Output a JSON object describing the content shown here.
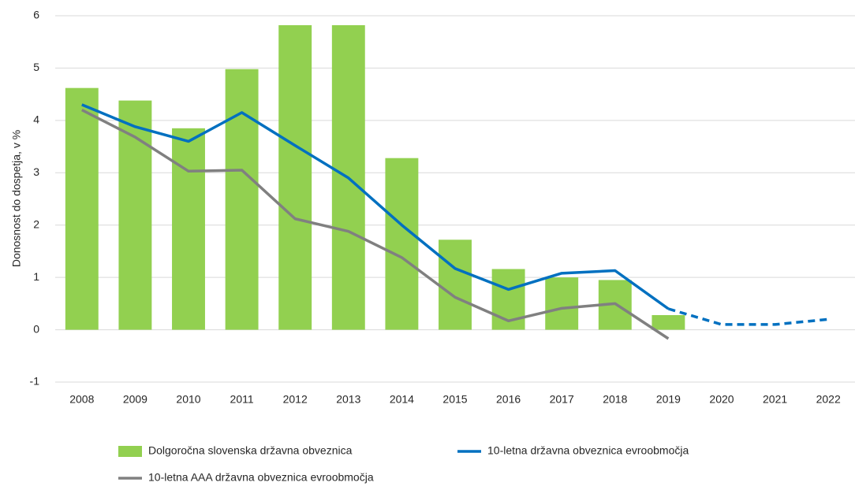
{
  "chart_data": {
    "type": "combo",
    "y_label": "Donosnost do dospetja, v %",
    "categories": [
      "2008",
      "2009",
      "2010",
      "2011",
      "2012",
      "2013",
      "2014",
      "2015",
      "2016",
      "2017",
      "2018",
      "2019",
      "2020",
      "2021",
      "2022"
    ],
    "ylim": [
      -1,
      6
    ],
    "yticks": [
      -1,
      0,
      1,
      2,
      3,
      4,
      5,
      6
    ],
    "grid": true,
    "series": [
      {
        "name": "Dolgoročna slovenska državna obveznica",
        "type": "bar",
        "color": "#92d050",
        "values": [
          4.62,
          4.38,
          3.85,
          4.98,
          5.82,
          5.82,
          3.28,
          1.72,
          1.16,
          1.0,
          0.95,
          0.28,
          null,
          null,
          null
        ]
      },
      {
        "name": "10-letna državna obveznica evroobmočja",
        "type": "line",
        "color": "#0070c0",
        "values": [
          4.3,
          3.88,
          3.6,
          4.15,
          3.52,
          2.9,
          2.0,
          1.17,
          0.77,
          1.08,
          1.13,
          0.4,
          null,
          null,
          null
        ]
      },
      {
        "name": "10-letna AAA državna obveznica evroobmočja",
        "type": "line",
        "color": "#808080",
        "values": [
          4.2,
          3.68,
          3.03,
          3.05,
          2.12,
          1.88,
          1.38,
          0.62,
          0.17,
          0.41,
          0.5,
          -0.17,
          null,
          null,
          null
        ]
      },
      {
        "type": "line",
        "color": "#0070c0",
        "dashed": true,
        "values": [
          null,
          null,
          null,
          null,
          null,
          null,
          null,
          null,
          null,
          null,
          null,
          0.4,
          0.1,
          0.1,
          0.2
        ]
      }
    ]
  }
}
